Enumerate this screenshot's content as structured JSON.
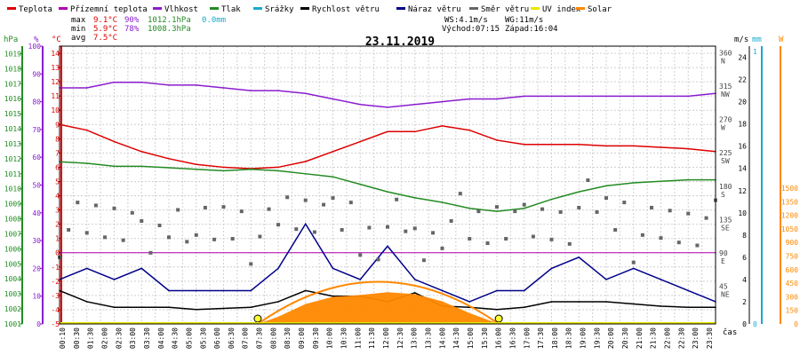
{
  "chart_data": {
    "type": "line",
    "title": "23.11.2019",
    "legend": [
      {
        "label": "Teplota",
        "color": "#dd0000"
      },
      {
        "label": "Přízemní teplota",
        "color": "#b000b0"
      },
      {
        "label": "Vlhkost",
        "color": "#8a1ccf"
      },
      {
        "label": "Tlak",
        "color": "#228b22"
      },
      {
        "label": "Srážky",
        "color": "#18aacc"
      },
      {
        "label": "Rychlost větru",
        "color": "#000000"
      },
      {
        "label": "Náraz větru",
        "color": "#00008b"
      },
      {
        "label": "Směr větru",
        "color": "#666666"
      },
      {
        "label": "UV index",
        "color": "#e8e800"
      },
      {
        "label": "Solar",
        "color": "#ff8800"
      }
    ],
    "stats": {
      "rows": [
        {
          "label": "max",
          "temp": "9.1°C",
          "hum": "90%",
          "press": "1012.1hPa",
          "rain": "0.0mm"
        },
        {
          "label": "min",
          "temp": "5.9°C",
          "hum": "78%",
          "press": "1008.3hPa",
          "rain": ""
        },
        {
          "label": "avg",
          "temp": "7.5°C",
          "hum": "",
          "press": "",
          "rain": ""
        }
      ],
      "wind_speed": "WS:4.1m/s",
      "wind_gust": "WG:11m/s",
      "sunrise": "Východ:07:15",
      "sunset": "Západ:16:04"
    },
    "axes": {
      "hPa": {
        "unit": "hPa",
        "ticks": [
          "1001",
          "1002",
          "1003",
          "1004",
          "1005",
          "1006",
          "1007",
          "1008",
          "1009",
          "1010",
          "1011",
          "1012",
          "1013",
          "1014",
          "1015",
          "1016",
          "1017",
          "1018",
          "1019"
        ],
        "range": [
          1001,
          1019.5
        ],
        "color": "#228b22"
      },
      "percent": {
        "unit": "%",
        "ticks": [
          "0",
          "10",
          "20",
          "30",
          "40",
          "50",
          "60",
          "70",
          "80",
          "90",
          "100"
        ],
        "range": [
          0,
          100
        ],
        "color": "#8a1ccf"
      },
      "celsius": {
        "unit": "°C",
        "ticks": [
          "-5",
          "-4",
          "-3",
          "-2",
          "-1",
          "0",
          "1",
          "2",
          "3",
          "4",
          "5",
          "6",
          "7",
          "8",
          "9",
          "10",
          "11",
          "12",
          "13",
          "14"
        ],
        "range": [
          -5,
          14.5
        ],
        "color": "#dd0000"
      },
      "direction": {
        "ticks": [
          "45\nNE",
          "90\nE",
          "135\nSE",
          "180\nS",
          "225\nSW",
          "270\nW",
          "315\nNW",
          "360\nN"
        ],
        "values": [
          45,
          90,
          135,
          180,
          225,
          270,
          315,
          360
        ],
        "range": [
          0,
          375
        ]
      },
      "ms": {
        "unit": "m/s",
        "ticks": [
          "0",
          "2",
          "4",
          "6",
          "8",
          "10",
          "12",
          "14",
          "16",
          "18",
          "20",
          "22",
          "24"
        ],
        "range": [
          0,
          25
        ]
      },
      "mm": {
        "unit": "mm",
        "ticks": [
          "0",
          "1"
        ],
        "range": [
          0,
          1
        ]
      },
      "watts": {
        "unit": "W",
        "ticks": [
          "0",
          "150",
          "300",
          "450",
          "600",
          "750",
          "900",
          "1050",
          "1200",
          "1350",
          "1500"
        ],
        "range": [
          0,
          1500
        ]
      },
      "time": {
        "ticks": [
          "00:10",
          "00:30",
          "01:30",
          "02:00",
          "02:30",
          "03:00",
          "03:30",
          "04:00",
          "04:30",
          "05:00",
          "05:30",
          "06:00",
          "06:30",
          "07:00",
          "07:30",
          "08:00",
          "08:30",
          "09:00",
          "09:30",
          "10:00",
          "10:30",
          "11:00",
          "11:30",
          "12:00",
          "12:30",
          "13:00",
          "13:30",
          "14:00",
          "14:30",
          "15:00",
          "15:30",
          "16:00",
          "16:30",
          "17:00",
          "17:30",
          "18:00",
          "18:30",
          "19:00",
          "19:30",
          "20:00",
          "20:30",
          "21:00",
          "21:30",
          "22:00",
          "22:30",
          "23:00",
          "23:30"
        ],
        "unit_label": "čas"
      }
    },
    "hours": [
      0,
      1,
      2,
      3,
      4,
      5,
      6,
      7,
      8,
      9,
      10,
      11,
      12,
      13,
      14,
      15,
      16,
      17,
      18,
      19,
      20,
      21,
      22,
      23,
      24
    ],
    "series": [
      {
        "name": "Teplota",
        "axis": "celsius",
        "color": "#dd0000",
        "x": [
          0,
          1,
          2,
          3,
          4,
          5,
          6,
          7,
          8,
          9,
          10,
          11,
          12,
          13,
          14,
          15,
          16,
          17,
          18,
          19,
          20,
          21,
          22,
          23,
          24
        ],
        "values": [
          9.0,
          8.6,
          7.8,
          7.1,
          6.6,
          6.2,
          6.0,
          5.9,
          6.0,
          6.4,
          7.1,
          7.8,
          8.5,
          8.5,
          8.9,
          8.6,
          7.9,
          7.6,
          7.6,
          7.6,
          7.5,
          7.5,
          7.4,
          7.3,
          7.1
        ]
      },
      {
        "name": "Přízemní teplota",
        "axis": "celsius",
        "color": "#b000b0",
        "x": [
          0,
          24
        ],
        "values": [
          0,
          0
        ]
      },
      {
        "name": "Vlhkost",
        "axis": "percent",
        "color": "#8a1ccf",
        "x": [
          0,
          1,
          2,
          3,
          4,
          5,
          6,
          7,
          8,
          9,
          10,
          11,
          12,
          13,
          14,
          15,
          16,
          17,
          18,
          19,
          20,
          21,
          22,
          23,
          24
        ],
        "values": [
          85,
          85,
          87,
          87,
          86,
          86,
          85,
          84,
          84,
          83,
          81,
          79,
          78,
          79,
          80,
          81,
          81,
          82,
          82,
          82,
          82,
          82,
          82,
          82,
          83
        ]
      },
      {
        "name": "Tlak",
        "axis": "hPa",
        "color": "#228b22",
        "x": [
          0,
          1,
          2,
          3,
          4,
          5,
          6,
          7,
          8,
          9,
          10,
          11,
          12,
          13,
          14,
          15,
          16,
          17,
          18,
          19,
          20,
          21,
          22,
          23,
          24
        ],
        "values": [
          1011.8,
          1011.7,
          1011.5,
          1011.5,
          1011.4,
          1011.3,
          1011.2,
          1011.3,
          1011.2,
          1011.0,
          1010.8,
          1010.3,
          1009.8,
          1009.4,
          1009.1,
          1008.7,
          1008.5,
          1008.7,
          1009.3,
          1009.8,
          1010.2,
          1010.4,
          1010.5,
          1010.6,
          1010.6
        ]
      },
      {
        "name": "Rychlost větru",
        "axis": "ms",
        "color": "#000000",
        "x": [
          0,
          1,
          2,
          3,
          4,
          5,
          6,
          7,
          8,
          9,
          10,
          11,
          12,
          13,
          14,
          15,
          16,
          17,
          18,
          19,
          20,
          21,
          22,
          23,
          24
        ],
        "values": [
          3.0,
          2.0,
          1.5,
          1.5,
          1.5,
          1.3,
          1.4,
          1.5,
          2.0,
          3.0,
          2.5,
          2.5,
          2.0,
          2.8,
          1.6,
          1.5,
          1.3,
          1.5,
          2.0,
          2.0,
          2.0,
          1.8,
          1.6,
          1.5,
          1.5
        ]
      },
      {
        "name": "Náraz větru",
        "axis": "ms",
        "color": "#00008b",
        "x": [
          0,
          1,
          2,
          3,
          4,
          5,
          6,
          7,
          8,
          9,
          10,
          11,
          12,
          13,
          14,
          15,
          16,
          17,
          18,
          19,
          20,
          21,
          22,
          23,
          24
        ],
        "values": [
          4,
          5,
          4,
          5,
          3,
          3,
          3,
          3,
          5,
          9,
          5,
          4,
          7,
          4,
          3,
          2,
          3,
          3,
          5,
          6,
          4,
          5,
          4,
          3,
          2
        ]
      },
      {
        "name": "Směr větru",
        "axis": "direction",
        "color": "#666666",
        "x": [
          0,
          1,
          2,
          3,
          4,
          5,
          6,
          7,
          8,
          9,
          10,
          11,
          12,
          13,
          14,
          15,
          16,
          17,
          18,
          19,
          20,
          21,
          22,
          23,
          24
        ],
        "values": [
          130,
          140,
          150,
          110,
          145,
          125,
          140,
          120,
          150,
          160,
          140,
          120,
          135,
          110,
          140,
          130,
          150,
          130,
          140,
          160,
          150,
          120,
          130,
          140,
          135
        ]
      },
      {
        "name": "Solar",
        "axis": "watts",
        "color": "#ff8800",
        "x": [
          7.25,
          8,
          9,
          10,
          11,
          12,
          13,
          14,
          15,
          16.07
        ],
        "values": [
          0,
          80,
          220,
          300,
          320,
          350,
          330,
          250,
          120,
          0
        ]
      }
    ]
  }
}
